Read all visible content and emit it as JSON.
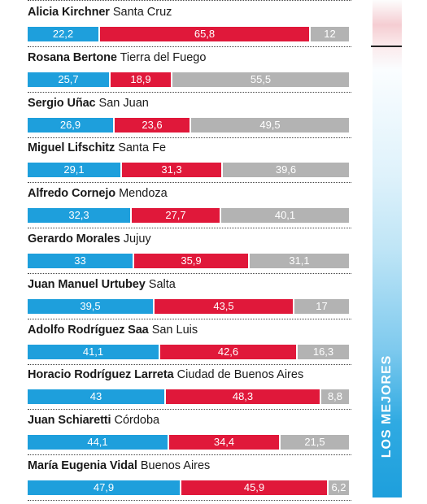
{
  "side_label": "LOS MEJORES",
  "colors": {
    "blue": "#1e9fdc",
    "red": "#e0183a",
    "gray": "#b3b3b3"
  },
  "chart_data": {
    "type": "bar",
    "orientation": "horizontal",
    "stacked": true,
    "grid": false,
    "legend": "none",
    "series_colors": [
      "#1e9fdc",
      "#e0183a",
      "#b3b3b3"
    ],
    "rows": [
      {
        "name": "Alicia Kirchner",
        "province": "Santa Cruz",
        "values": [
          "22,2",
          "65,8",
          "12"
        ]
      },
      {
        "name": "Rosana Bertone",
        "province": "Tierra del Fuego",
        "values": [
          "25,7",
          "18,9",
          "55,5"
        ]
      },
      {
        "name": "Sergio Uñac",
        "province": "San Juan",
        "values": [
          "26,9",
          "23,6",
          "49,5"
        ]
      },
      {
        "name": "Miguel Lifschitz",
        "province": "Santa Fe",
        "values": [
          "29,1",
          "31,3",
          "39,6"
        ]
      },
      {
        "name": "Alfredo Cornejo",
        "province": "Mendoza",
        "values": [
          "32,3",
          "27,7",
          "40,1"
        ]
      },
      {
        "name": "Gerardo Morales",
        "province": "Jujuy",
        "values": [
          "33",
          "35,9",
          "31,1"
        ]
      },
      {
        "name": "Juan Manuel Urtubey",
        "province": "Salta",
        "values": [
          "39,5",
          "43,5",
          "17"
        ]
      },
      {
        "name": "Adolfo Rodríguez Saa",
        "province": "San Luis",
        "values": [
          "41,1",
          "42,6",
          "16,3"
        ]
      },
      {
        "name": "Horacio Rodríguez Larreta",
        "province": "Ciudad de Buenos Aires",
        "values": [
          "43",
          "48,3",
          "8,8"
        ]
      },
      {
        "name": "Juan Schiaretti",
        "province": "Córdoba",
        "values": [
          "44,1",
          "34,4",
          "21,5"
        ]
      },
      {
        "name": "María Eugenia Vidal",
        "province": "Buenos Aires",
        "values": [
          "47,9",
          "45,9",
          "6,2"
        ]
      }
    ]
  }
}
